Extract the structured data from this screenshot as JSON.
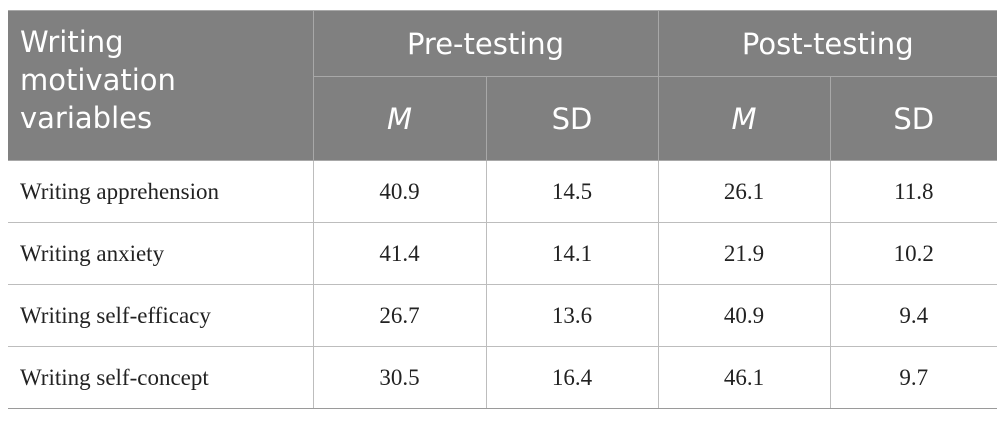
{
  "header": {
    "variable": "Writing motivation variables",
    "groups": [
      "Pre-testing",
      "Post-testing"
    ],
    "subheaders": [
      "M",
      "SD",
      "M",
      "SD"
    ]
  },
  "rows": [
    {
      "label": "Writing apprehension",
      "values": [
        40.9,
        14.5,
        26.1,
        11.8
      ]
    },
    {
      "label": "Writing anxiety",
      "values": [
        41.4,
        14.1,
        21.9,
        10.2
      ]
    },
    {
      "label": "Writing self-efficacy",
      "values": [
        26.7,
        13.6,
        40.9,
        9.4
      ]
    },
    {
      "label": "Writing self-concept",
      "values": [
        30.5,
        16.4,
        46.1,
        9.7
      ]
    }
  ]
}
